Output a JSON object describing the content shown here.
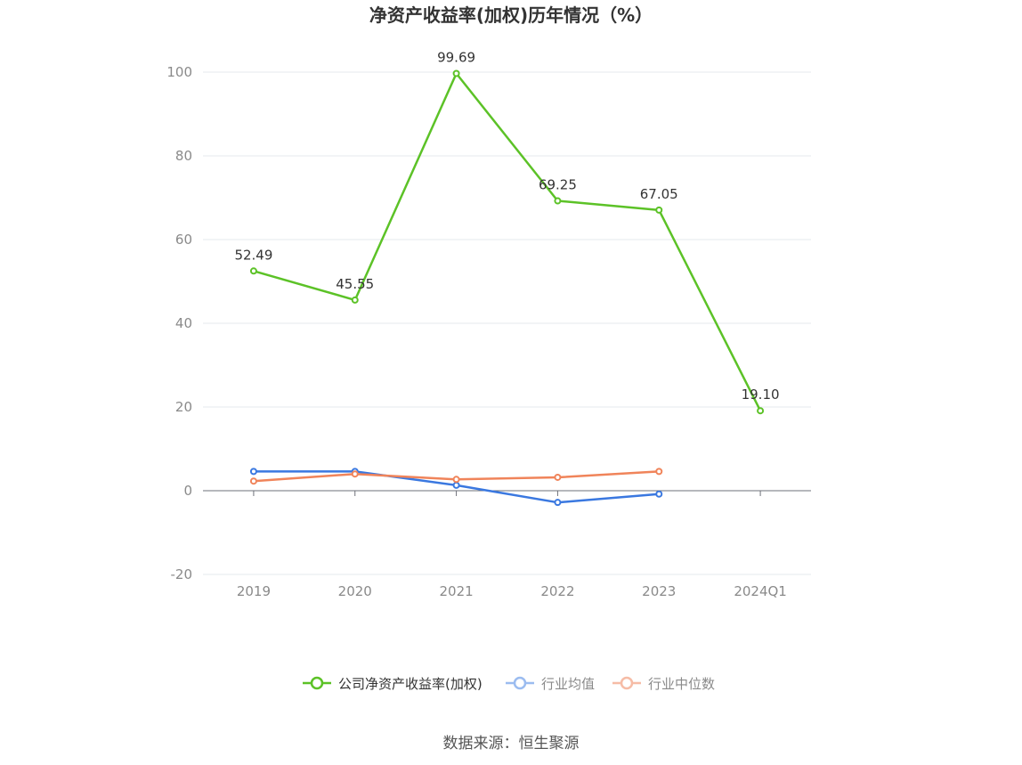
{
  "chart_data": {
    "type": "line",
    "title": "净资产收益率(加权)历年情况（%）",
    "categories": [
      "2019",
      "2020",
      "2021",
      "2022",
      "2023",
      "2024Q1"
    ],
    "ylim": [
      -20,
      100
    ],
    "yticks": [
      -20,
      0,
      20,
      40,
      60,
      80,
      100
    ],
    "grid": true,
    "legend_position": "bottom",
    "series": [
      {
        "name": "公司净资产收益率(加权)",
        "color": "#5cc227",
        "values": [
          52.49,
          45.55,
          99.69,
          69.25,
          67.05,
          19.1
        ],
        "labels": [
          "52.49",
          "45.55",
          "99.69",
          "69.25",
          "67.05",
          "19.10"
        ]
      },
      {
        "name": "行业均值",
        "color": "#3a78e0",
        "legend_color": "#9bbcf0",
        "values": [
          4.6,
          4.6,
          1.3,
          -2.8,
          -0.8,
          null
        ]
      },
      {
        "name": "行业中位数",
        "color": "#f0845a",
        "legend_color": "#f6bca6",
        "values": [
          2.3,
          4.0,
          2.7,
          3.2,
          4.6,
          null
        ]
      }
    ],
    "source": "数据来源：恒生聚源"
  }
}
